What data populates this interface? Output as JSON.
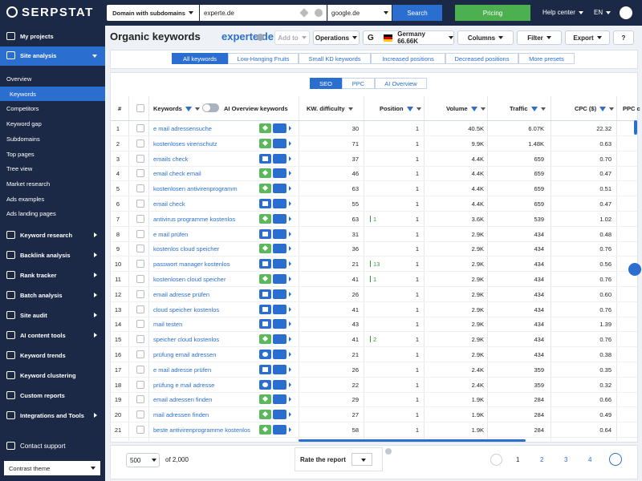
{
  "header": {
    "logo": "SERPSTAT",
    "search_type": "Domain with subdomains",
    "query": "experte.de",
    "region": "google.de",
    "search_button": "Search",
    "pricing": "Pricing",
    "help": "Help center",
    "language": "EN"
  },
  "sidebar": {
    "items": [
      {
        "label": "My projects"
      },
      {
        "label": "Site analysis",
        "open": true,
        "children": [
          "Overview",
          "Keywords",
          "Competitors",
          "Keyword gap",
          "Subdomains",
          "Top pages",
          "Tree view",
          "Market research",
          "Ads examples",
          "Ads landing pages"
        ],
        "active_child": 1
      },
      {
        "label": "Keyword research",
        "arrow": true
      },
      {
        "label": "Backlink analysis",
        "arrow": true
      },
      {
        "label": "Rank tracker",
        "arrow": true
      },
      {
        "label": "Batch analysis",
        "arrow": true
      },
      {
        "label": "Site audit",
        "arrow": true
      },
      {
        "label": "AI content tools",
        "arrow": true
      },
      {
        "label": "Keyword trends"
      },
      {
        "label": "Keyword clustering"
      },
      {
        "label": "Custom reports"
      },
      {
        "label": "Integrations and Tools",
        "arrow": true
      }
    ],
    "support": "Contact support",
    "theme": "Contrast theme"
  },
  "toolbar": {
    "title": "Organic keywords",
    "domain": "experte.de",
    "add_to": "Add to",
    "operations": "Operations",
    "search_engine": "G",
    "country": "Germany 66.66K",
    "columns": "Columns",
    "filter": "Filter",
    "export": "Export",
    "help": "?"
  },
  "presets": {
    "tabs": [
      "All keywords",
      "Low-Hanging Fruits",
      "Small KD keywords",
      "Increased positions",
      "Decreased positions",
      "More presets"
    ],
    "active": 0
  },
  "modes": {
    "tabs": [
      "SEO",
      "PPC",
      "AI Overview"
    ],
    "active": 0
  },
  "table": {
    "columns": {
      "number": "#",
      "keywords": "Keywords",
      "ai_toggle": "AI Overview keywords",
      "kd": "KW. difficulty",
      "position": "Position",
      "volume": "Volume",
      "traffic": "Traffic",
      "cpc": "CPC ($)",
      "ppc": "PPC c"
    },
    "rows": [
      {
        "n": 1,
        "keyword": "e mail adressensuche",
        "serp": "ai",
        "kd": 30,
        "position": 1,
        "volume": "40.5K",
        "traffic": "6.07K",
        "cpc": "22.32"
      },
      {
        "n": 2,
        "keyword": "kostenloses virenschutz",
        "serp": "ai",
        "kd": 71,
        "position": 1,
        "volume": "9.9K",
        "traffic": "1.48K",
        "cpc": "0.63"
      },
      {
        "n": 3,
        "keyword": "emails check",
        "serp": "chat",
        "kd": 37,
        "position": 1,
        "volume": "4.4K",
        "traffic": 659,
        "cpc": "0.70"
      },
      {
        "n": 4,
        "keyword": "email check email",
        "serp": "ai",
        "kd": 46,
        "position": 1,
        "volume": "4.4K",
        "traffic": 659,
        "cpc": "0.47"
      },
      {
        "n": 5,
        "keyword": "kostenlosen antivirenprogramm",
        "serp": "ai",
        "kd": 63,
        "position": 1,
        "volume": "4.4K",
        "traffic": 659,
        "cpc": "0.51"
      },
      {
        "n": 6,
        "keyword": "email check",
        "serp": "chat",
        "kd": 55,
        "position": 1,
        "volume": "4.4K",
        "traffic": 659,
        "cpc": "0.47"
      },
      {
        "n": 7,
        "keyword": "antivirus programme kostenlos",
        "serp": "ai",
        "kd": 63,
        "change": 1,
        "position": 1,
        "volume": "3.6K",
        "traffic": 539,
        "cpc": "1.02"
      },
      {
        "n": 8,
        "keyword": "e mail prüfen",
        "serp": "chat",
        "kd": 31,
        "position": 1,
        "volume": "2.9K",
        "traffic": 434,
        "cpc": "0.48"
      },
      {
        "n": 9,
        "keyword": "kostenlos cloud speicher",
        "serp": "ai",
        "kd": 36,
        "position": 1,
        "volume": "2.9K",
        "traffic": 434,
        "cpc": "0.76"
      },
      {
        "n": 10,
        "keyword": "passwort manager kostenlos",
        "serp": "list",
        "kd": 21,
        "change": 13,
        "position": 1,
        "volume": "2.9K",
        "traffic": 434,
        "cpc": "0.56"
      },
      {
        "n": 11,
        "keyword": "kostenlosen cloud speicher",
        "serp": "ai",
        "kd": 41,
        "change": 1,
        "position": 1,
        "volume": "2.9K",
        "traffic": 434,
        "cpc": "0.76"
      },
      {
        "n": 12,
        "keyword": "email adresse prüfen",
        "serp": "chat",
        "kd": 26,
        "position": 1,
        "volume": "2.9K",
        "traffic": 434,
        "cpc": "0.60"
      },
      {
        "n": 13,
        "keyword": "cloud speicher kostenlos",
        "serp": "chat",
        "kd": 41,
        "position": 1,
        "volume": "2.9K",
        "traffic": 434,
        "cpc": "0.76"
      },
      {
        "n": 14,
        "keyword": "mail testen",
        "serp": "chat",
        "kd": 43,
        "position": 1,
        "volume": "2.9K",
        "traffic": 434,
        "cpc": "1.39"
      },
      {
        "n": 15,
        "keyword": "speicher cloud kostenlos",
        "serp": "ai",
        "kd": 41,
        "change": 2,
        "position": 1,
        "volume": "2.9K",
        "traffic": 434,
        "cpc": "0.76"
      },
      {
        "n": 16,
        "keyword": "prüfung email adressen",
        "serp": "faq",
        "kd": 21,
        "position": 1,
        "volume": "2.9K",
        "traffic": 434,
        "cpc": "0.38"
      },
      {
        "n": 17,
        "keyword": "e mail adresse prüfen",
        "serp": "chat",
        "kd": 26,
        "position": 1,
        "volume": "2.4K",
        "traffic": 359,
        "cpc": "0.35"
      },
      {
        "n": 18,
        "keyword": "prüfung e mail adresse",
        "serp": "faq",
        "kd": 22,
        "position": 1,
        "volume": "2.4K",
        "traffic": 359,
        "cpc": "0.32"
      },
      {
        "n": 19,
        "keyword": "email adressen finden",
        "serp": "ai",
        "kd": 29,
        "position": 1,
        "volume": "1.9K",
        "traffic": 284,
        "cpc": "0.66"
      },
      {
        "n": 20,
        "keyword": "mail adressen finden",
        "serp": "ai",
        "kd": 27,
        "position": 1,
        "volume": "1.9K",
        "traffic": 284,
        "cpc": "0.49"
      },
      {
        "n": 21,
        "keyword": "beste antivirenprogramme kostenlos",
        "serp": "ai",
        "kd": 58,
        "position": 1,
        "volume": "1.9K",
        "traffic": 284,
        "cpc": "0.64"
      }
    ]
  },
  "footer": {
    "page_size": "500",
    "total": "of 2,000",
    "rate": "Rate the report",
    "pages": [
      1,
      2,
      3,
      4
    ],
    "current_page": 0
  }
}
